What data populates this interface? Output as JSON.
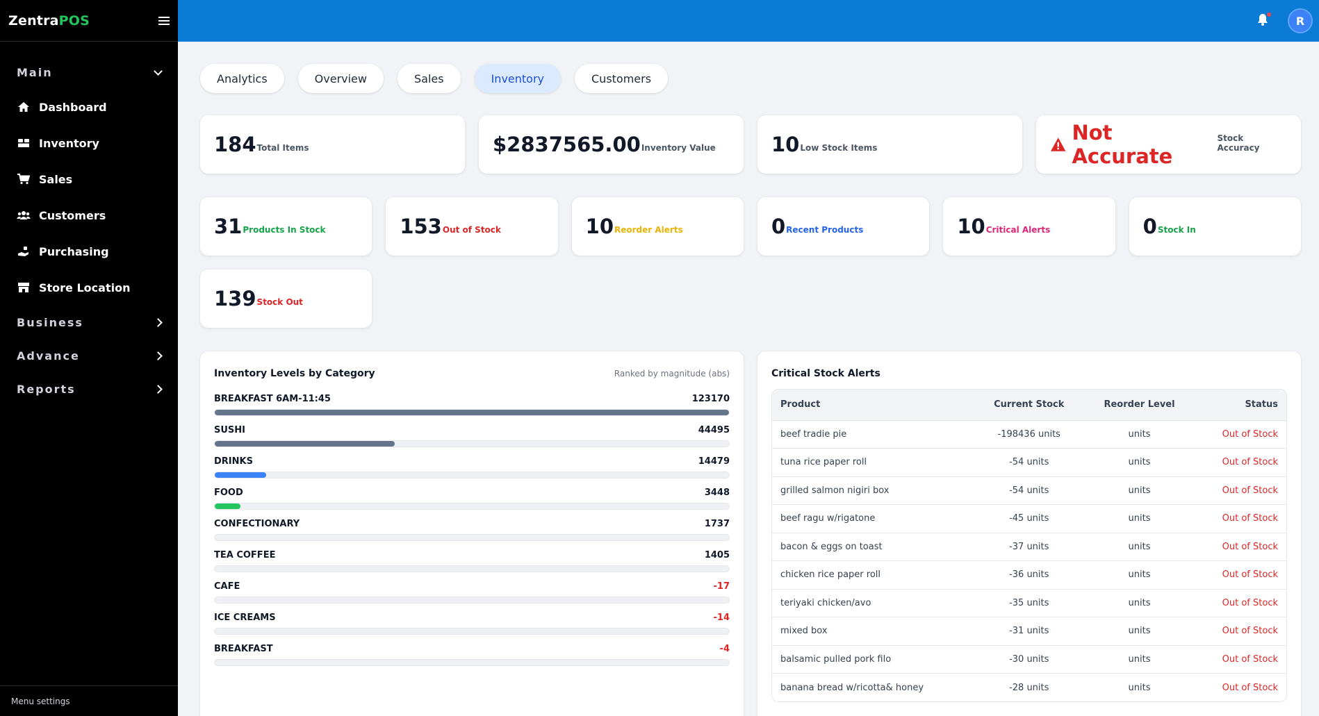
{
  "brand": {
    "prefix": "Zentra",
    "accent": "POS"
  },
  "sidebar": {
    "main_section": "Main",
    "items": [
      {
        "label": "Dashboard",
        "icon": "home-icon"
      },
      {
        "label": "Inventory",
        "icon": "boxes-icon"
      },
      {
        "label": "Sales",
        "icon": "cart-icon"
      },
      {
        "label": "Customers",
        "icon": "users-icon"
      },
      {
        "label": "Purchasing",
        "icon": "hand-coin-icon"
      },
      {
        "label": "Store Location",
        "icon": "store-icon"
      }
    ],
    "sections": [
      {
        "label": "Business"
      },
      {
        "label": "Advance"
      },
      {
        "label": "Reports"
      }
    ],
    "footer": "Menu settings"
  },
  "topbar": {
    "avatar_initial": "R"
  },
  "tabs": [
    {
      "label": "Analytics"
    },
    {
      "label": "Overview"
    },
    {
      "label": "Sales"
    },
    {
      "label": "Inventory",
      "active": true
    },
    {
      "label": "Customers"
    }
  ],
  "stats_top": [
    {
      "value": "184",
      "label": "Total Items"
    },
    {
      "value": "$2837565.00",
      "label": "Inventory Value"
    },
    {
      "value": "10",
      "label": "Low Stock Items"
    },
    {
      "value": "Not Accurate",
      "label": "Stock Accuracy"
    }
  ],
  "stats_mid": [
    {
      "value": "31",
      "label": "Products In Stock",
      "color": "#16a34a"
    },
    {
      "value": "153",
      "label": "Out of Stock",
      "color": "#dc2626"
    },
    {
      "value": "10",
      "label": "Reorder Alerts",
      "color": "#eab308"
    },
    {
      "value": "0",
      "label": "Recent Products",
      "color": "#2563eb"
    },
    {
      "value": "10",
      "label": "Critical Alerts",
      "color": "#db2777"
    },
    {
      "value": "0",
      "label": "Stock In",
      "color": "#16a34a"
    },
    {
      "value": "139",
      "label": "Stock Out",
      "color": "#dc2626"
    }
  ],
  "levels_panel": {
    "title": "Inventory Levels by Category",
    "subtitle": "Ranked by magnitude (abs)",
    "categories": [
      {
        "name": "BREAKFAST 6AM-11:45",
        "value": "123170",
        "fill": 1.0,
        "color": "#64748b"
      },
      {
        "name": "SUSHI",
        "value": "44495",
        "fill": 0.35,
        "color": "#64748b"
      },
      {
        "name": "DRINKS",
        "value": "14479",
        "fill": 0.1,
        "color": "#3b82f6"
      },
      {
        "name": "FOOD",
        "value": "3448",
        "fill": 0.05,
        "color": "#22c55e"
      },
      {
        "name": "CONFECTIONARY",
        "value": "1737",
        "fill": 0.0,
        "color": "#64748b"
      },
      {
        "name": "TEA COFFEE",
        "value": "1405",
        "fill": 0.0,
        "color": "#64748b"
      },
      {
        "name": "CAFE",
        "value": "-17",
        "fill": 0.0,
        "color": "#dc2626"
      },
      {
        "name": "ICE CREAMS",
        "value": "-14",
        "fill": 0.0,
        "color": "#dc2626"
      },
      {
        "name": "BREAKFAST",
        "value": "-4",
        "fill": 0.0,
        "color": "#dc2626"
      }
    ]
  },
  "alerts_panel": {
    "title": "Critical Stock Alerts",
    "headers": [
      "Product",
      "Current Stock",
      "Reorder Level",
      "Status"
    ],
    "rows": [
      {
        "product": "beef tradie pie",
        "stock": "-198436 units",
        "reorder": "units",
        "status": "Out of Stock"
      },
      {
        "product": "tuna rice paper roll",
        "stock": "-54 units",
        "reorder": "units",
        "status": "Out of Stock"
      },
      {
        "product": "grilled salmon nigiri box",
        "stock": "-54 units",
        "reorder": "units",
        "status": "Out of Stock"
      },
      {
        "product": "beef ragu w/rigatone",
        "stock": "-45 units",
        "reorder": "units",
        "status": "Out of Stock"
      },
      {
        "product": "bacon & eggs on toast",
        "stock": "-37 units",
        "reorder": "units",
        "status": "Out of Stock"
      },
      {
        "product": "chicken rice paper roll",
        "stock": "-36 units",
        "reorder": "units",
        "status": "Out of Stock"
      },
      {
        "product": "teriyaki chicken/avo",
        "stock": "-35 units",
        "reorder": "units",
        "status": "Out of Stock"
      },
      {
        "product": "mixed box",
        "stock": "-31 units",
        "reorder": "units",
        "status": "Out of Stock"
      },
      {
        "product": "balsamic pulled pork filo",
        "stock": "-30 units",
        "reorder": "units",
        "status": "Out of Stock"
      },
      {
        "product": "banana bread w/ricotta& honey",
        "stock": "-28 units",
        "reorder": "units",
        "status": "Out of Stock"
      }
    ]
  }
}
